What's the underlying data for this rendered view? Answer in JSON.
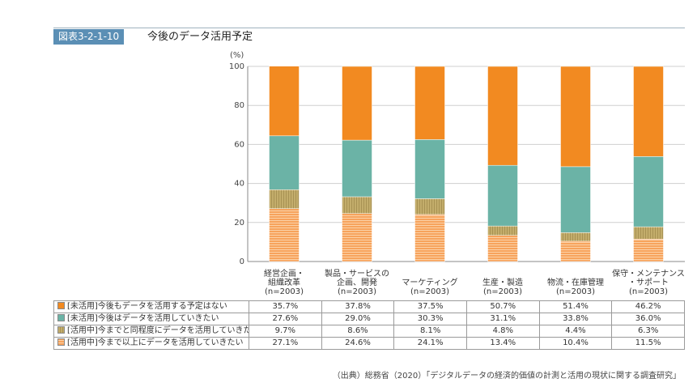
{
  "figure": {
    "badge": "図表3-2-1-10",
    "title": "今後のデータ活用予定",
    "source": "（出典）総務省（2020）「デジタルデータの経済的価値の計測と活用の現状に関する調査研究」"
  },
  "chart_data": {
    "type": "bar",
    "stacked": true,
    "ylabel": "(%)",
    "ylim": [
      0,
      100
    ],
    "yticks": [
      0,
      20,
      40,
      60,
      80,
      100
    ],
    "grid": true,
    "categories": [
      [
        "経営企画・",
        "組織改革",
        "(n=2003)"
      ],
      [
        "製品・サービスの",
        "企画、開発",
        "(n=2003)"
      ],
      [
        "マーケティング",
        "(n=2003)"
      ],
      [
        "生産・製造",
        "(n=2003)"
      ],
      [
        "物流・在庫管理",
        "(n=2003)"
      ],
      [
        "保守・メンテナンス",
        "・サポート",
        "(n=2003)"
      ]
    ],
    "series": [
      {
        "name": "[活用中]今まで以上にデータを活用していきたい",
        "color": "#f7a35c",
        "values": [
          27.1,
          24.6,
          24.1,
          13.4,
          10.4,
          11.5
        ],
        "labels": [
          "27.1%",
          "24.6%",
          "24.1%",
          "13.4%",
          "10.4%",
          "11.5%"
        ]
      },
      {
        "name": "[活用中]今までと同程度にデータを活用していきたい",
        "color": "#c3ad6b",
        "values": [
          9.7,
          8.6,
          8.1,
          4.8,
          4.4,
          6.3
        ],
        "labels": [
          "9.7%",
          "8.6%",
          "8.1%",
          "4.8%",
          "4.4%",
          "6.3%"
        ]
      },
      {
        "name": "[未活用]今後はデータを活用していきたい",
        "color": "#6bb3a6",
        "values": [
          27.6,
          29.0,
          30.3,
          31.1,
          33.8,
          36.0
        ],
        "labels": [
          "27.6%",
          "29.0%",
          "30.3%",
          "31.1%",
          "33.8%",
          "36.0%"
        ]
      },
      {
        "name": "[未活用]今後もデータを活用する予定はない",
        "color": "#f28a21",
        "values": [
          35.7,
          37.8,
          37.5,
          50.7,
          51.4,
          46.2
        ],
        "labels": [
          "35.7%",
          "37.8%",
          "37.5%",
          "50.7%",
          "51.4%",
          "46.2%"
        ]
      }
    ],
    "table_row_order": [
      3,
      2,
      1,
      0
    ]
  }
}
